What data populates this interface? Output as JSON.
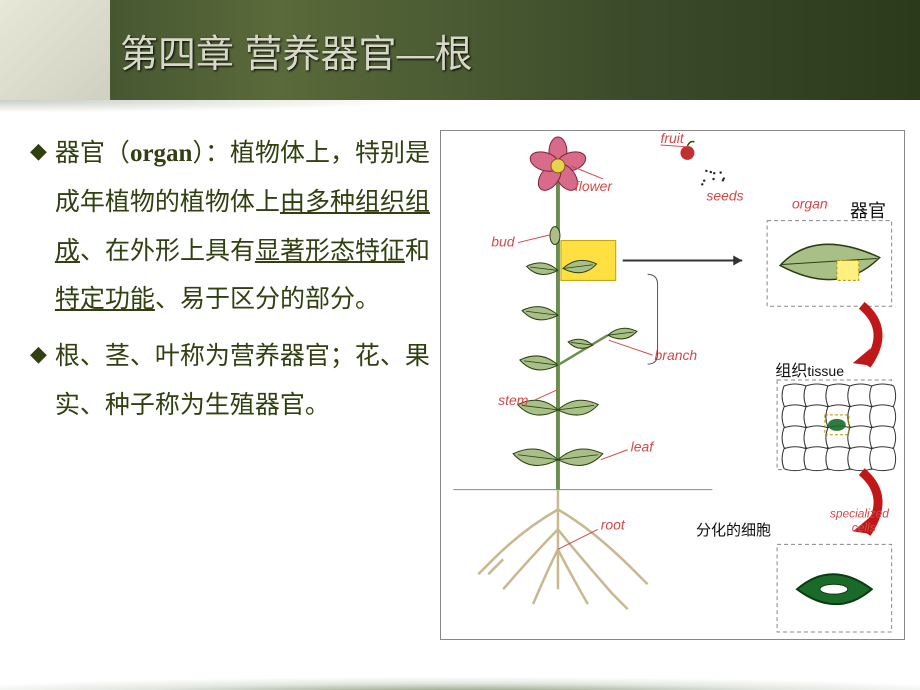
{
  "title": "第四章 营养器官—根",
  "bullets": [
    {
      "diamond": "◆",
      "pre": "器官（",
      "bold": "organ",
      "mid": "）：植物体上，特别是成年植物的植物体上",
      "u1": "由多种组织组成",
      "sep1": "、在外形上具有",
      "u2": "显著形态特征",
      "sep2": "和",
      "u3": "特定功能",
      "tail": "、易于区分的部分。"
    },
    {
      "diamond": "◆",
      "text": "根、茎、叶称为营养器官；花、果实、种子称为生殖器官。"
    }
  ],
  "diagram": {
    "labels_en": {
      "fruit": "fruit",
      "flower": "flower",
      "seeds": "seeds",
      "bud": "bud",
      "branch": "branch",
      "stem": "stem",
      "leaf": "leaf",
      "root": "root",
      "organ": "organ",
      "tissue": "tissue",
      "cells": "specialized\ncells"
    },
    "labels_cn": {
      "organ": "器官",
      "tissue": "组织",
      "cells": "分化的细胞"
    },
    "colors": {
      "stem": "#6b8e4e",
      "leaf_fill": "#a8c088",
      "leaf_stroke": "#2a4010",
      "flower": "#d86a8a",
      "flower_center": "#e8d050",
      "fruit": "#c03030",
      "root": "#c8b890",
      "highlight": "#ffe040",
      "label_line": "#d04a4a",
      "arrow": "#c01818",
      "dashed": "#888888",
      "cell_stroke": "#333333",
      "stomata_fill": "#1a6b2a",
      "text": "#333333",
      "yellow_box_fill": "#fff080"
    },
    "font": {
      "label_en_size": 14,
      "family": "Arial, sans-serif"
    }
  }
}
